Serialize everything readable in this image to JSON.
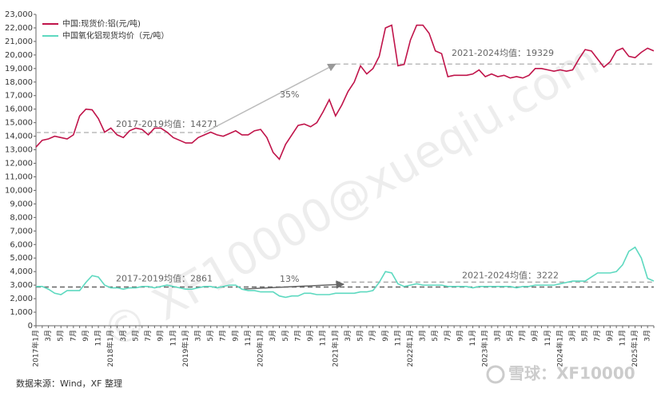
{
  "chart_data": {
    "type": "line",
    "categories": [
      "2017年1月",
      null,
      "3月",
      null,
      "5月",
      null,
      "7月",
      null,
      "9月",
      null,
      "11月",
      null,
      "2018年1月",
      null,
      "3月",
      null,
      "5月",
      null,
      "7月",
      null,
      "9月",
      null,
      "11月",
      null,
      "2019年1月",
      null,
      "3月",
      null,
      "5月",
      null,
      "7月",
      null,
      "9月",
      null,
      "11月",
      null,
      "2020年1月",
      null,
      "3月",
      null,
      "5月",
      null,
      "7月",
      null,
      "9月",
      null,
      "11月",
      null,
      "2021年1月",
      null,
      "3月",
      null,
      "5月",
      null,
      "7月",
      null,
      "9月",
      null,
      "11月",
      null,
      "2022年1月",
      null,
      "3月",
      null,
      "5月",
      null,
      "7月",
      null,
      "9月",
      null,
      "11月",
      null,
      "2023年1月",
      null,
      "3月",
      null,
      "5月",
      null,
      "7月",
      null,
      "9月",
      null,
      "11月",
      null,
      "2024年1月",
      null,
      "3月",
      null,
      "5月",
      null,
      "7月",
      null,
      "9月",
      null,
      "11月",
      null,
      "2025年1月",
      null,
      "3月",
      null
    ],
    "series": [
      {
        "name": "中国:现货价:铝(元/吨)",
        "color": "#c0144a",
        "values": [
          13200,
          13700,
          13800,
          14000,
          13900,
          13800,
          14100,
          15500,
          16000,
          15950,
          15300,
          14300,
          14600,
          14100,
          13900,
          14400,
          14600,
          14500,
          14100,
          14600,
          14600,
          14300,
          13900,
          13700,
          13500,
          13500,
          13900,
          14100,
          14300,
          14100,
          14000,
          14200,
          14400,
          14100,
          14100,
          14400,
          14500,
          13900,
          12800,
          12300,
          13400,
          14100,
          14800,
          14900,
          14700,
          15000,
          15800,
          16700,
          15500,
          16300,
          17300,
          18000,
          19200,
          18600,
          19000,
          19900,
          22000,
          22200,
          19200,
          19300,
          21100,
          22200,
          22200,
          21600,
          20300,
          20100,
          18400,
          18500,
          18500,
          18500,
          18600,
          18900,
          18400,
          18600,
          18400,
          18500,
          18300,
          18400,
          18300,
          18500,
          19000,
          19000,
          18900,
          18800,
          18900,
          18800,
          18900,
          19700,
          20400,
          20300,
          19700,
          19100,
          19500,
          20300,
          20500,
          19900,
          19800,
          20200,
          20500,
          20300
        ]
      },
      {
        "name": "中国氧化铝现货均价（元/吨）",
        "color": "#5ed9c0",
        "values": [
          2900,
          2900,
          2700,
          2400,
          2300,
          2600,
          2600,
          2600,
          3200,
          3700,
          3600,
          3000,
          2800,
          2800,
          2700,
          2800,
          2800,
          2900,
          2900,
          2800,
          2900,
          3000,
          2900,
          2800,
          2700,
          2700,
          2800,
          2900,
          2900,
          2800,
          2900,
          3000,
          3000,
          2700,
          2600,
          2600,
          2500,
          2500,
          2500,
          2200,
          2100,
          2200,
          2200,
          2400,
          2400,
          2300,
          2300,
          2300,
          2400,
          2400,
          2400,
          2400,
          2500,
          2500,
          2600,
          3200,
          4000,
          3900,
          3100,
          2900,
          3000,
          3100,
          3000,
          3000,
          3000,
          3000,
          2900,
          2900,
          2900,
          2900,
          2800,
          2900,
          2900,
          2900,
          2900,
          2900,
          2900,
          2800,
          2900,
          2900,
          3000,
          3000,
          3000,
          3000,
          3100,
          3200,
          3300,
          3300,
          3300,
          3600,
          3900,
          3900,
          3900,
          4000,
          4500,
          5500,
          5800,
          5000,
          3500,
          3300
        ]
      }
    ],
    "ylim": [
      0,
      23000
    ],
    "yticks": [
      0,
      {
        "value": 1000,
        "label": "1,000"
      },
      {
        "value": 2000,
        "label": "2,000"
      },
      {
        "value": 3000,
        "label": "3,000"
      },
      {
        "value": 4000,
        "label": "4,000"
      },
      {
        "value": 5000,
        "label": "5,000"
      },
      {
        "value": 6000,
        "label": "6,000"
      },
      {
        "value": 7000,
        "label": "7,000"
      },
      {
        "value": 8000,
        "label": "8,000"
      },
      {
        "value": 9000,
        "label": "9,000"
      },
      {
        "value": 10000,
        "label": "10,000"
      },
      {
        "value": 11000,
        "label": "11,000"
      },
      {
        "value": 12000,
        "label": "12,000"
      },
      {
        "value": 13000,
        "label": "13,000"
      },
      {
        "value": 14000,
        "label": "14,000"
      },
      {
        "value": 15000,
        "label": "15,000"
      },
      {
        "value": 16000,
        "label": "16,000"
      },
      {
        "value": 17000,
        "label": "17,000"
      },
      {
        "value": 18000,
        "label": "18,000"
      },
      {
        "value": 19000,
        "label": "19,000"
      },
      {
        "value": 20000,
        "label": "20,000"
      },
      {
        "value": 21000,
        "label": "21,000"
      },
      {
        "value": 22000,
        "label": "22,000"
      },
      {
        "value": 23000,
        "label": "23,000"
      }
    ],
    "reference_lines": [
      {
        "label": "2017-2019均值：14271",
        "value": 14271
      },
      {
        "label": "2021-2024均值：19329",
        "value": 19329
      },
      {
        "label": "2017-2019均值：2861",
        "value": 2861
      },
      {
        "label": "2021-2024均值：3222",
        "value": 3222
      }
    ],
    "annotations": [
      "35%",
      "13%"
    ],
    "legend": "top-left",
    "source": "数据来源：Wind，XF 整理",
    "watermark": "© XF10000@xueqiu.com",
    "brand": "雪球：XF10000"
  }
}
